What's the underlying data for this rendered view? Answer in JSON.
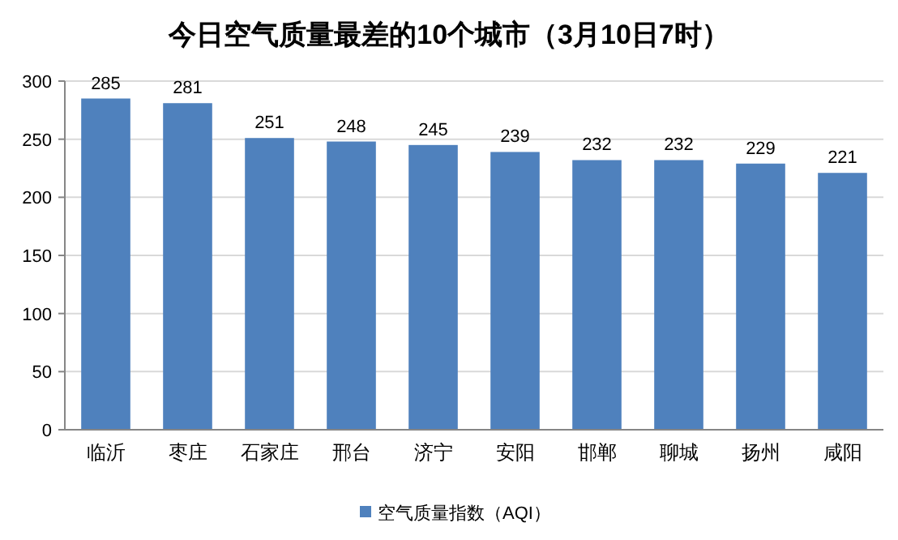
{
  "chart_data": {
    "type": "bar",
    "title": "今日空气质量最差的10个城市（3月10日7时）",
    "categories": [
      "临沂",
      "枣庄",
      "石家庄",
      "邢台",
      "济宁",
      "安阳",
      "邯郸",
      "聊城",
      "扬州",
      "咸阳"
    ],
    "series": [
      {
        "name": "空气质量指数（AQI）",
        "color": "#4f81bd",
        "values": [
          285,
          281,
          251,
          248,
          245,
          239,
          232,
          232,
          229,
          221
        ]
      }
    ],
    "ylim": [
      0,
      300
    ],
    "yticks": [
      0,
      50,
      100,
      150,
      200,
      250,
      300
    ],
    "grid": "y",
    "data_labels": true,
    "legend": "bottom"
  }
}
